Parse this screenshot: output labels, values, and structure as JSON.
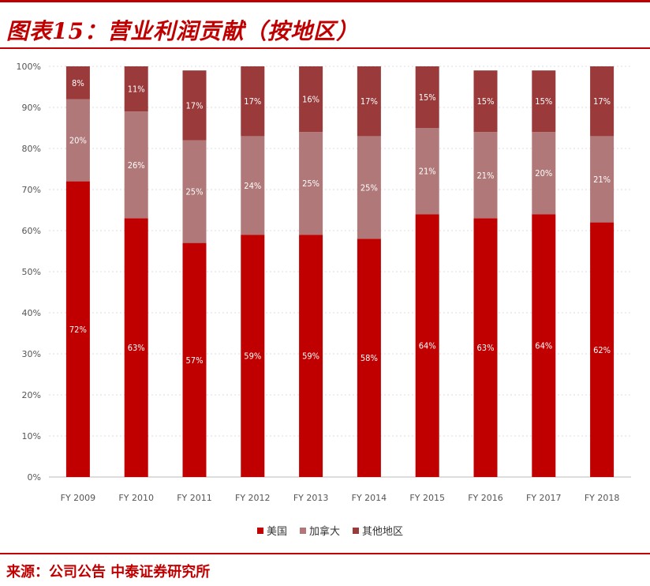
{
  "title": "图表15：营业利润贡献（按地区）",
  "source": "来源：公司公告  中泰证券研究所",
  "chart_data": {
    "type": "bar",
    "stacked": true,
    "categories": [
      "FY 2009",
      "FY 2010",
      "FY 2011",
      "FY 2012",
      "FY 2013",
      "FY 2014",
      "FY 2015",
      "FY 2016",
      "FY 2017",
      "FY 2018"
    ],
    "series": [
      {
        "name": "美国",
        "color": "#c00000",
        "values": [
          72,
          63,
          57,
          59,
          59,
          58,
          64,
          63,
          64,
          62
        ]
      },
      {
        "name": "加拿大",
        "color": "#b07878",
        "values": [
          20,
          26,
          25,
          24,
          25,
          25,
          21,
          21,
          20,
          21
        ]
      },
      {
        "name": "其他地区",
        "color": "#9a3a3a",
        "values": [
          8,
          11,
          17,
          17,
          16,
          17,
          15,
          15,
          15,
          17
        ]
      }
    ],
    "y_ticks": [
      "0%",
      "10%",
      "20%",
      "30%",
      "40%",
      "50%",
      "60%",
      "70%",
      "80%",
      "90%",
      "100%"
    ],
    "ylim": [
      0,
      100
    ],
    "grid": true,
    "legend_position": "bottom"
  }
}
